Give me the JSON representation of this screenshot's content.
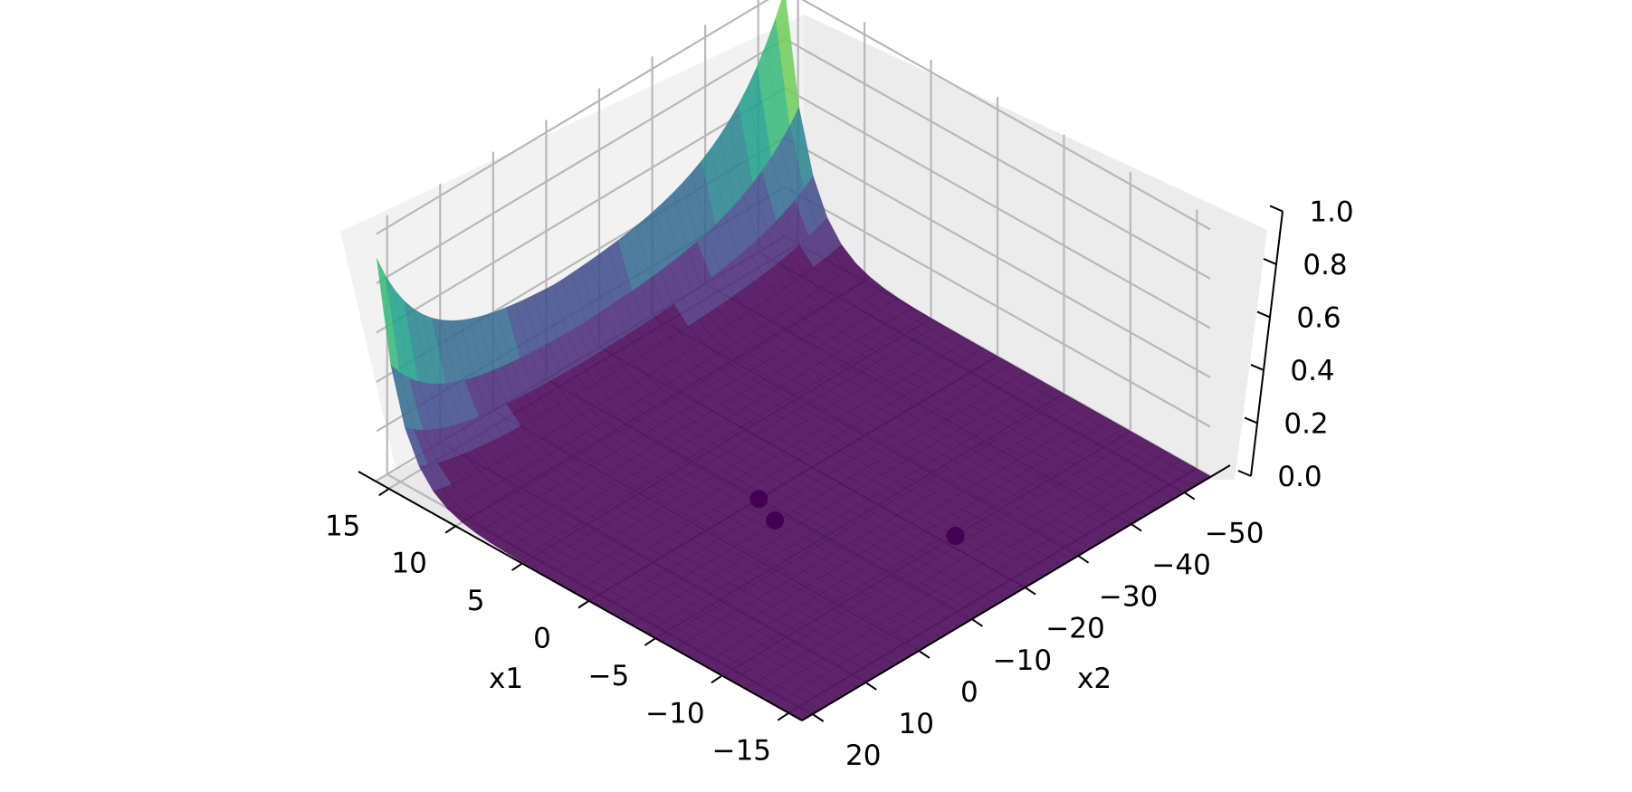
{
  "chart_data": {
    "type": "surface3d",
    "title": "",
    "xlabel": "x1",
    "ylabel": "x2",
    "zlabel": "",
    "x_ticks": [
      "15",
      "10",
      "5",
      "0",
      "−5",
      "−10",
      "−15"
    ],
    "x_tick_values": [
      15,
      10,
      5,
      0,
      -5,
      -10,
      -15
    ],
    "y_ticks": [
      "20",
      "10",
      "0",
      "−10",
      "−20",
      "−30",
      "−40",
      "−50"
    ],
    "y_tick_values": [
      20,
      10,
      0,
      -10,
      -20,
      -30,
      -40,
      -50
    ],
    "z_ticks": [
      "0.0",
      "0.2",
      "0.4",
      "0.6",
      "0.8",
      "1.0"
    ],
    "z_tick_values": [
      0.0,
      0.2,
      0.4,
      0.6,
      0.8,
      1.0
    ],
    "xlim": [
      -16,
      16
    ],
    "ylim": [
      -55,
      22
    ],
    "zlim": [
      0,
      1
    ],
    "surface": {
      "colormap": "viridis",
      "alpha": 0.85,
      "description_values": {
        "peak_near_x1_max_x2_min": 1.0,
        "peak_near_x1_max_x2_max": 0.85,
        "flat_region_value": 0.0
      }
    },
    "points": [
      {
        "x1": -2,
        "x2": -8,
        "z": 0.0
      },
      {
        "x1": 0,
        "x2": -10,
        "z": 0.0
      },
      {
        "x1": -10,
        "x2": -22,
        "z": 0.0
      }
    ],
    "point_color": "#440154",
    "grid": true
  }
}
